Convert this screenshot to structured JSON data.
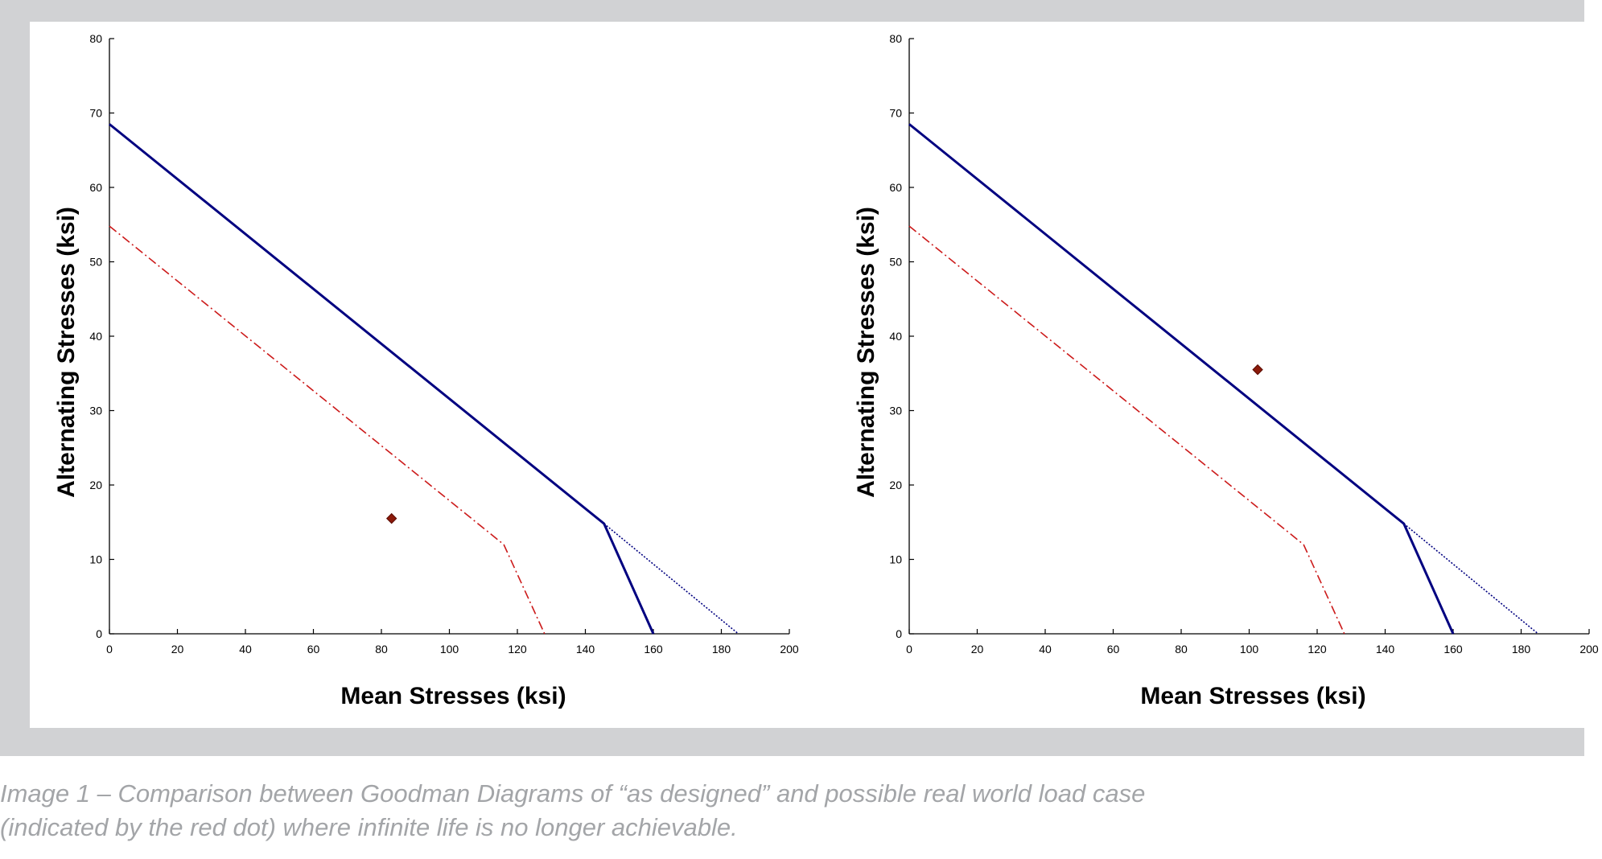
{
  "figure": {
    "caption_line1": "Image 1 – Comparison between Goodman Diagrams of “as designed” and possible real world load case",
    "caption_line2": "(indicated by the red dot) where infinite life is no longer achievable."
  },
  "colors": {
    "frame": "#d1d2d4",
    "goodman_line": "#000080",
    "safety_line": "#cc1a1a",
    "load_point": "#8b1a0a",
    "caption": "#a3a5a8"
  },
  "chart_data": [
    {
      "type": "line",
      "title": "",
      "xlabel": "Mean  Stresses (ksi)",
      "ylabel": "Alternating Stresses (ksi)",
      "xlim": [
        0,
        200
      ],
      "ylim": [
        0,
        80
      ],
      "xticks": [
        "0",
        "20",
        "40",
        "60",
        "80",
        "100",
        "120",
        "140",
        "160",
        "180",
        "200"
      ],
      "yticks": [
        "0",
        "10",
        "20",
        "30",
        "40",
        "50",
        "60",
        "70",
        "80"
      ],
      "grid": false,
      "series": [
        {
          "style": "solid",
          "color": "#000080",
          "x": [
            0,
            145.5,
            160
          ],
          "y": [
            68.5,
            14.8,
            0
          ]
        },
        {
          "style": "dotted",
          "color": "#000080",
          "x": [
            145.5,
            185
          ],
          "y": [
            14.8,
            0
          ]
        },
        {
          "style": "dash-dot",
          "color": "#cc1a1a",
          "x": [
            0,
            116,
            128
          ],
          "y": [
            54.8,
            12,
            0
          ]
        },
        {
          "style": "marker",
          "color": "#8b1a0a",
          "x": [
            83
          ],
          "y": [
            15.5
          ]
        }
      ]
    },
    {
      "type": "line",
      "title": "",
      "xlabel": "Mean  Stresses (ksi)",
      "ylabel": "Alternating Stresses (ksi)",
      "xlim": [
        0,
        200
      ],
      "ylim": [
        0,
        80
      ],
      "xticks": [
        "0",
        "20",
        "40",
        "60",
        "80",
        "100",
        "120",
        "140",
        "160",
        "180",
        "200"
      ],
      "yticks": [
        "0",
        "10",
        "20",
        "30",
        "40",
        "50",
        "60",
        "70",
        "80"
      ],
      "grid": false,
      "series": [
        {
          "style": "solid",
          "color": "#000080",
          "x": [
            0,
            145.5,
            160
          ],
          "y": [
            68.5,
            14.8,
            0
          ]
        },
        {
          "style": "dotted",
          "color": "#000080",
          "x": [
            145.5,
            185
          ],
          "y": [
            14.8,
            0
          ]
        },
        {
          "style": "dash-dot",
          "color": "#cc1a1a",
          "x": [
            0,
            116,
            128
          ],
          "y": [
            54.8,
            12,
            0
          ]
        },
        {
          "style": "marker",
          "color": "#8b1a0a",
          "x": [
            102.5
          ],
          "y": [
            35.5
          ]
        }
      ]
    }
  ]
}
